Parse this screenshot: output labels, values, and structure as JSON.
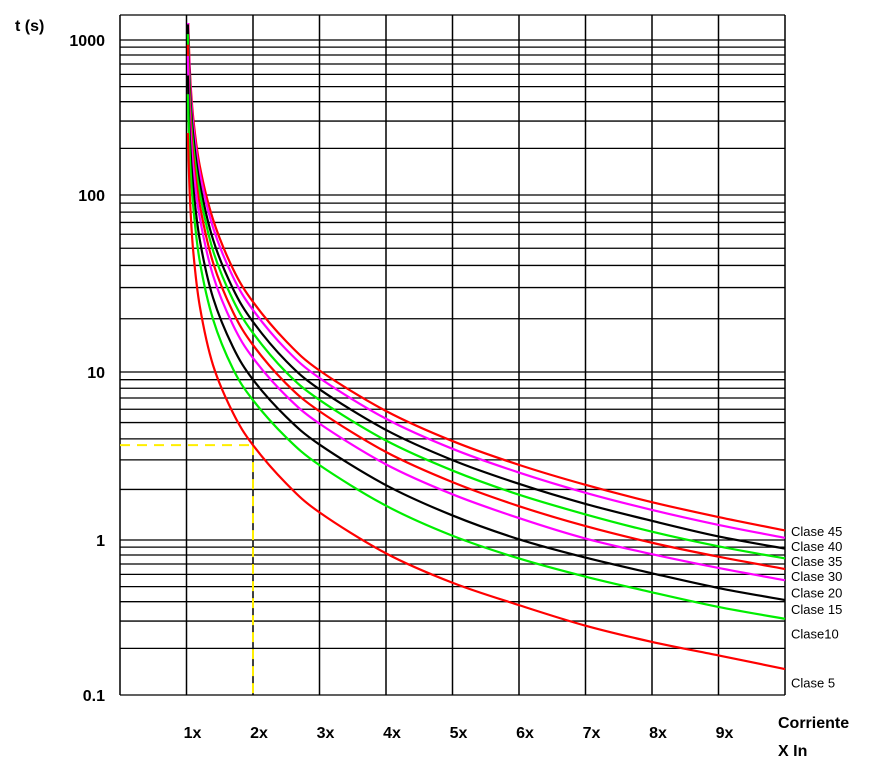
{
  "chart_data": {
    "type": "line",
    "ylabel": "t (s)",
    "xlabel": [
      "Corriente",
      "X In"
    ],
    "yscale": "log",
    "ylim": [
      0.1,
      1450
    ],
    "xlim": [
      0,
      10
    ],
    "grid": true,
    "y_tick_labels": [
      {
        "value": 1000,
        "label": "1000"
      },
      {
        "value": 100,
        "label": "100"
      },
      {
        "value": 10,
        "label": "10"
      },
      {
        "value": 1,
        "label": "1"
      },
      {
        "value": 0.1,
        "label": "0.1"
      }
    ],
    "x_tick_labels": [
      {
        "value": 1,
        "label": "1x"
      },
      {
        "value": 2,
        "label": "2x"
      },
      {
        "value": 3,
        "label": "3x"
      },
      {
        "value": 4,
        "label": "4x"
      },
      {
        "value": 5,
        "label": "5x"
      },
      {
        "value": 6,
        "label": "6x"
      },
      {
        "value": 7,
        "label": "7x"
      },
      {
        "value": 8,
        "label": "8x"
      },
      {
        "value": 9,
        "label": "9x"
      }
    ],
    "x": [
      1.02,
      1.05,
      1.1,
      1.2,
      1.4,
      1.7,
      2,
      2.5,
      3,
      4,
      5,
      6,
      7,
      8,
      9,
      10
    ],
    "series": [
      {
        "color": "#ff0000",
        "values": [
          1636,
          647,
          318,
          154,
          72.6,
          38.2,
          24.9,
          14.9,
          10.2,
          5.86,
          3.88,
          2.8,
          2.13,
          1.68,
          1.37,
          1.14
        ]
      },
      {
        "color": "#ff00ff",
        "values": [
          1472,
          582,
          286,
          139,
          65.3,
          34.4,
          22.4,
          13.4,
          9.21,
          5.27,
          3.49,
          2.52,
          1.91,
          1.51,
          1.23,
          1.03
        ]
      },
      {
        "color": "#000000",
        "values": [
          1261,
          499,
          246,
          119,
          55.9,
          29.5,
          19.2,
          11.5,
          7.89,
          4.52,
          2.99,
          2.16,
          1.64,
          1.3,
          1.05,
          0.88
        ]
      },
      {
        "color": "#00ee00",
        "values": [
          1091,
          432,
          212,
          103,
          48.4,
          25.5,
          16.6,
          9.96,
          6.82,
          3.91,
          2.59,
          1.86,
          1.42,
          1.12,
          0.91,
          0.76
        ]
      },
      {
        "color": "#ff0000",
        "values": [
          933,
          369,
          182,
          87.9,
          41.4,
          21.8,
          14.2,
          8.52,
          5.84,
          3.34,
          2.21,
          1.59,
          1.21,
          0.96,
          0.78,
          0.65
        ]
      },
      {
        "color": "#ff00ff",
        "values": [
          788,
          312,
          153,
          74.3,
          35.0,
          18.4,
          12.0,
          7.2,
          4.93,
          2.82,
          1.87,
          1.35,
          1.02,
          0.81,
          0.66,
          0.55
        ]
      },
      {
        "color": "#000000",
        "values": [
          591,
          234,
          115,
          55.7,
          26.2,
          13.8,
          9.0,
          5.4,
          3.7,
          2.12,
          1.4,
          1.01,
          0.77,
          0.61,
          0.49,
          0.41
        ]
      },
      {
        "color": "#00ee00",
        "values": [
          447,
          177,
          87.0,
          42.1,
          19.8,
          10.4,
          6.8,
          4.08,
          2.79,
          1.6,
          1.06,
          0.76,
          0.58,
          0.46,
          0.37,
          0.31
        ]
      },
      {
        "color": "#ff0000",
        "values": [
          251,
          99,
          48.7,
          23.5,
          10.9,
          5.7,
          3.67,
          2.17,
          1.46,
          0.82,
          0.53,
          0.38,
          0.28,
          0.22,
          0.18,
          0.147
        ]
      }
    ],
    "curve_labels": [
      {
        "label": "Clase 45",
        "t": 1.13
      },
      {
        "label": "Clase 40",
        "t": 0.99
      },
      {
        "label": "Clase 35",
        "t": 0.84
      },
      {
        "label": "Clase 30",
        "t": 0.71
      },
      {
        "label": "Clase 20",
        "t": 0.46
      },
      {
        "label": "Clase 15",
        "t": 0.36
      },
      {
        "label": "Clase10",
        "t": 0.25
      },
      {
        "label": "Clase 5",
        "t": 0.12
      }
    ],
    "annotation": {
      "type": "dashed-guide",
      "color": "#ffee00",
      "x": 2,
      "t": 3.67
    }
  }
}
